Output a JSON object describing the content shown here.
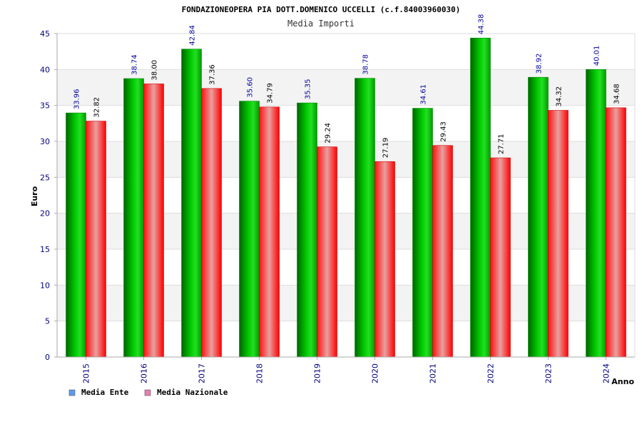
{
  "chart_data": {
    "type": "bar",
    "title": "FONDAZIONEOPERA PIA DOTT.DOMENICO UCCELLI (c.f.84003960030)",
    "subtitle": "Media Importi",
    "xlabel": "Anno",
    "ylabel": "Euro",
    "ylim": [
      0,
      45
    ],
    "yticks": [
      0,
      5,
      10,
      15,
      20,
      25,
      30,
      35,
      40,
      45
    ],
    "grid": true,
    "legend_position": "bottom-left",
    "categories": [
      "2015",
      "2016",
      "2017",
      "2018",
      "2019",
      "2020",
      "2021",
      "2022",
      "2023",
      "2024"
    ],
    "series": [
      {
        "name": "Media Ente",
        "color": "#00b400",
        "legend_color": "#5b9bef",
        "values": [
          33.96,
          38.74,
          42.84,
          35.6,
          35.35,
          38.78,
          34.61,
          44.38,
          38.92,
          40.01
        ],
        "labels": [
          "33.96",
          "38.74",
          "42.84",
          "35.60",
          "35.35",
          "38.78",
          "34.61",
          "44.38",
          "38.92",
          "40.01"
        ]
      },
      {
        "name": "Media Nazionale",
        "color": "#ff0000",
        "legend_color": "#e77fb3",
        "values": [
          32.82,
          38.0,
          37.36,
          34.79,
          29.24,
          27.19,
          29.43,
          27.71,
          34.32,
          34.68
        ],
        "labels": [
          "32.82",
          "38.00",
          "37.36",
          "34.79",
          "29.24",
          "27.19",
          "29.43",
          "27.71",
          "34.32",
          "34.68"
        ]
      }
    ]
  }
}
